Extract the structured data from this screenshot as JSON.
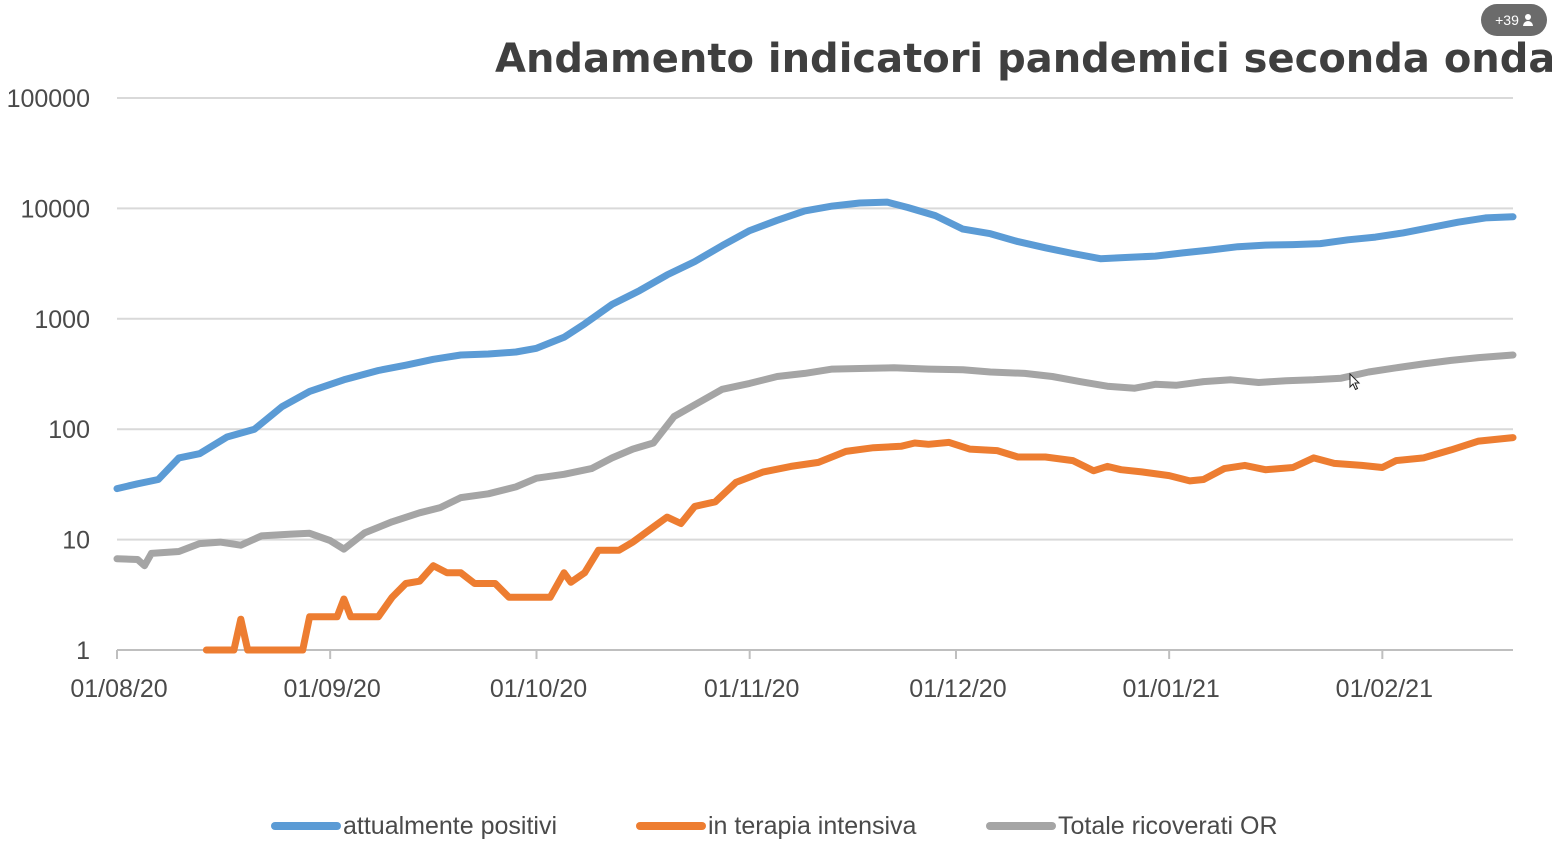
{
  "overlay": {
    "participants_label": "+39"
  },
  "chart_data": {
    "type": "line",
    "title": "Andamento indicatori pandemici seconda ondata",
    "xlabel": "",
    "ylabel": "",
    "yscale": "log",
    "ylim": [
      1,
      100000
    ],
    "yticks": [
      "1",
      "10",
      "100",
      "1000",
      "10000",
      "100000"
    ],
    "xlim": [
      "2020-08-01",
      "2021-02-20"
    ],
    "xticks": [
      "01/08/20",
      "01/09/20",
      "01/10/20",
      "01/11/20",
      "01/12/20",
      "01/01/21",
      "01/02/21"
    ],
    "grid": true,
    "legend": "bottom",
    "series": [
      {
        "name": "attualmente positivi",
        "color": "#5b9bd5",
        "points": [
          [
            "2020-08-01",
            29
          ],
          [
            "2020-08-04",
            32
          ],
          [
            "2020-08-07",
            35
          ],
          [
            "2020-08-10",
            55
          ],
          [
            "2020-08-13",
            60
          ],
          [
            "2020-08-17",
            85
          ],
          [
            "2020-08-21",
            100
          ],
          [
            "2020-08-25",
            160
          ],
          [
            "2020-08-29",
            220
          ],
          [
            "2020-09-03",
            280
          ],
          [
            "2020-09-08",
            340
          ],
          [
            "2020-09-12",
            380
          ],
          [
            "2020-09-16",
            430
          ],
          [
            "2020-09-20",
            470
          ],
          [
            "2020-09-24",
            480
          ],
          [
            "2020-09-28",
            500
          ],
          [
            "2020-10-01",
            540
          ],
          [
            "2020-10-05",
            680
          ],
          [
            "2020-10-08",
            900
          ],
          [
            "2020-10-12",
            1350
          ],
          [
            "2020-10-16",
            1800
          ],
          [
            "2020-10-20",
            2500
          ],
          [
            "2020-10-24",
            3300
          ],
          [
            "2020-10-28",
            4600
          ],
          [
            "2020-11-01",
            6300
          ],
          [
            "2020-11-05",
            7800
          ],
          [
            "2020-11-09",
            9500
          ],
          [
            "2020-11-13",
            10500
          ],
          [
            "2020-11-17",
            11200
          ],
          [
            "2020-11-21",
            11400
          ],
          [
            "2020-11-24",
            10200
          ],
          [
            "2020-11-28",
            8600
          ],
          [
            "2020-12-02",
            6500
          ],
          [
            "2020-12-06",
            5900
          ],
          [
            "2020-12-10",
            5000
          ],
          [
            "2020-12-14",
            4400
          ],
          [
            "2020-12-18",
            3900
          ],
          [
            "2020-12-22",
            3500
          ],
          [
            "2020-12-26",
            3600
          ],
          [
            "2020-12-30",
            3700
          ],
          [
            "2021-01-03",
            3950
          ],
          [
            "2021-01-07",
            4200
          ],
          [
            "2021-01-11",
            4500
          ],
          [
            "2021-01-15",
            4650
          ],
          [
            "2021-01-19",
            4700
          ],
          [
            "2021-01-23",
            4800
          ],
          [
            "2021-01-27",
            5200
          ],
          [
            "2021-01-31",
            5500
          ],
          [
            "2021-02-04",
            6000
          ],
          [
            "2021-02-08",
            6700
          ],
          [
            "2021-02-12",
            7500
          ],
          [
            "2021-02-16",
            8200
          ],
          [
            "2021-02-20",
            8400
          ]
        ]
      },
      {
        "name": "in terapia intensiva",
        "color": "#ed7d31",
        "points": [
          [
            "2020-08-14",
            1
          ],
          [
            "2020-08-18",
            1
          ],
          [
            "2020-08-19",
            1.9
          ],
          [
            "2020-08-20",
            1
          ],
          [
            "2020-08-27",
            1
          ],
          [
            "2020-08-28",
            1
          ],
          [
            "2020-08-29",
            2
          ],
          [
            "2020-09-02",
            2
          ],
          [
            "2020-09-03",
            2.9
          ],
          [
            "2020-09-04",
            2
          ],
          [
            "2020-09-08",
            2
          ],
          [
            "2020-09-10",
            3
          ],
          [
            "2020-09-12",
            4
          ],
          [
            "2020-09-14",
            4.2
          ],
          [
            "2020-09-16",
            5.8
          ],
          [
            "2020-09-18",
            5
          ],
          [
            "2020-09-20",
            5
          ],
          [
            "2020-09-22",
            4
          ],
          [
            "2020-09-25",
            4
          ],
          [
            "2020-09-27",
            3
          ],
          [
            "2020-10-01",
            3
          ],
          [
            "2020-10-03",
            3
          ],
          [
            "2020-10-05",
            5
          ],
          [
            "2020-10-06",
            4.1
          ],
          [
            "2020-10-08",
            5
          ],
          [
            "2020-10-10",
            8
          ],
          [
            "2020-10-13",
            8
          ],
          [
            "2020-10-15",
            9.5
          ],
          [
            "2020-10-18",
            13
          ],
          [
            "2020-10-20",
            16
          ],
          [
            "2020-10-22",
            14
          ],
          [
            "2020-10-24",
            20
          ],
          [
            "2020-10-27",
            22
          ],
          [
            "2020-10-30",
            33
          ],
          [
            "2020-11-03",
            41
          ],
          [
            "2020-11-07",
            46
          ],
          [
            "2020-11-11",
            50
          ],
          [
            "2020-11-15",
            63
          ],
          [
            "2020-11-19",
            68
          ],
          [
            "2020-11-23",
            70
          ],
          [
            "2020-11-25",
            75
          ],
          [
            "2020-11-27",
            73
          ],
          [
            "2020-11-30",
            76
          ],
          [
            "2020-12-03",
            66
          ],
          [
            "2020-12-07",
            64
          ],
          [
            "2020-12-10",
            56
          ],
          [
            "2020-12-14",
            56
          ],
          [
            "2020-12-18",
            52
          ],
          [
            "2020-12-21",
            42
          ],
          [
            "2020-12-23",
            46
          ],
          [
            "2020-12-25",
            43
          ],
          [
            "2020-12-28",
            41
          ],
          [
            "2021-01-01",
            38
          ],
          [
            "2021-01-04",
            34
          ],
          [
            "2021-01-06",
            35
          ],
          [
            "2021-01-09",
            44
          ],
          [
            "2021-01-12",
            47
          ],
          [
            "2021-01-15",
            43
          ],
          [
            "2021-01-19",
            45
          ],
          [
            "2021-01-22",
            55
          ],
          [
            "2021-01-25",
            49
          ],
          [
            "2021-01-29",
            47
          ],
          [
            "2021-02-01",
            45
          ],
          [
            "2021-02-03",
            52
          ],
          [
            "2021-02-07",
            55
          ],
          [
            "2021-02-11",
            65
          ],
          [
            "2021-02-15",
            78
          ],
          [
            "2021-02-20",
            84
          ]
        ]
      },
      {
        "name": "Totale ricoverati OR",
        "color": "#a5a5a5",
        "points": [
          [
            "2020-08-01",
            6.7
          ],
          [
            "2020-08-04",
            6.6
          ],
          [
            "2020-08-05",
            5.8
          ],
          [
            "2020-08-06",
            7.5
          ],
          [
            "2020-08-10",
            7.8
          ],
          [
            "2020-08-13",
            9.2
          ],
          [
            "2020-08-16",
            9.5
          ],
          [
            "2020-08-19",
            8.9
          ],
          [
            "2020-08-22",
            10.8
          ],
          [
            "2020-08-26",
            11.2
          ],
          [
            "2020-08-29",
            11.4
          ],
          [
            "2020-09-01",
            9.8
          ],
          [
            "2020-09-03",
            8.2
          ],
          [
            "2020-09-06",
            11.5
          ],
          [
            "2020-09-10",
            14.5
          ],
          [
            "2020-09-14",
            17.5
          ],
          [
            "2020-09-17",
            19.5
          ],
          [
            "2020-09-20",
            24
          ],
          [
            "2020-09-24",
            26
          ],
          [
            "2020-09-28",
            30
          ],
          [
            "2020-10-01",
            36
          ],
          [
            "2020-10-05",
            39
          ],
          [
            "2020-10-09",
            44
          ],
          [
            "2020-10-12",
            55
          ],
          [
            "2020-10-15",
            66
          ],
          [
            "2020-10-18",
            75
          ],
          [
            "2020-10-21",
            130
          ],
          [
            "2020-10-25",
            180
          ],
          [
            "2020-10-28",
            230
          ],
          [
            "2020-11-01",
            260
          ],
          [
            "2020-11-05",
            300
          ],
          [
            "2020-11-09",
            320
          ],
          [
            "2020-11-13",
            350
          ],
          [
            "2020-11-17",
            355
          ],
          [
            "2020-11-22",
            360
          ],
          [
            "2020-11-27",
            350
          ],
          [
            "2020-12-02",
            345
          ],
          [
            "2020-12-06",
            330
          ],
          [
            "2020-12-11",
            320
          ],
          [
            "2020-12-15",
            300
          ],
          [
            "2020-12-19",
            270
          ],
          [
            "2020-12-23",
            245
          ],
          [
            "2020-12-27",
            235
          ],
          [
            "2020-12-30",
            255
          ],
          [
            "2021-01-02",
            250
          ],
          [
            "2021-01-06",
            270
          ],
          [
            "2021-01-10",
            280
          ],
          [
            "2021-01-14",
            265
          ],
          [
            "2021-01-18",
            275
          ],
          [
            "2021-01-22",
            280
          ],
          [
            "2021-01-26",
            290
          ],
          [
            "2021-01-30",
            330
          ],
          [
            "2021-02-03",
            360
          ],
          [
            "2021-02-07",
            390
          ],
          [
            "2021-02-11",
            420
          ],
          [
            "2021-02-15",
            445
          ],
          [
            "2021-02-20",
            470
          ]
        ]
      }
    ]
  }
}
